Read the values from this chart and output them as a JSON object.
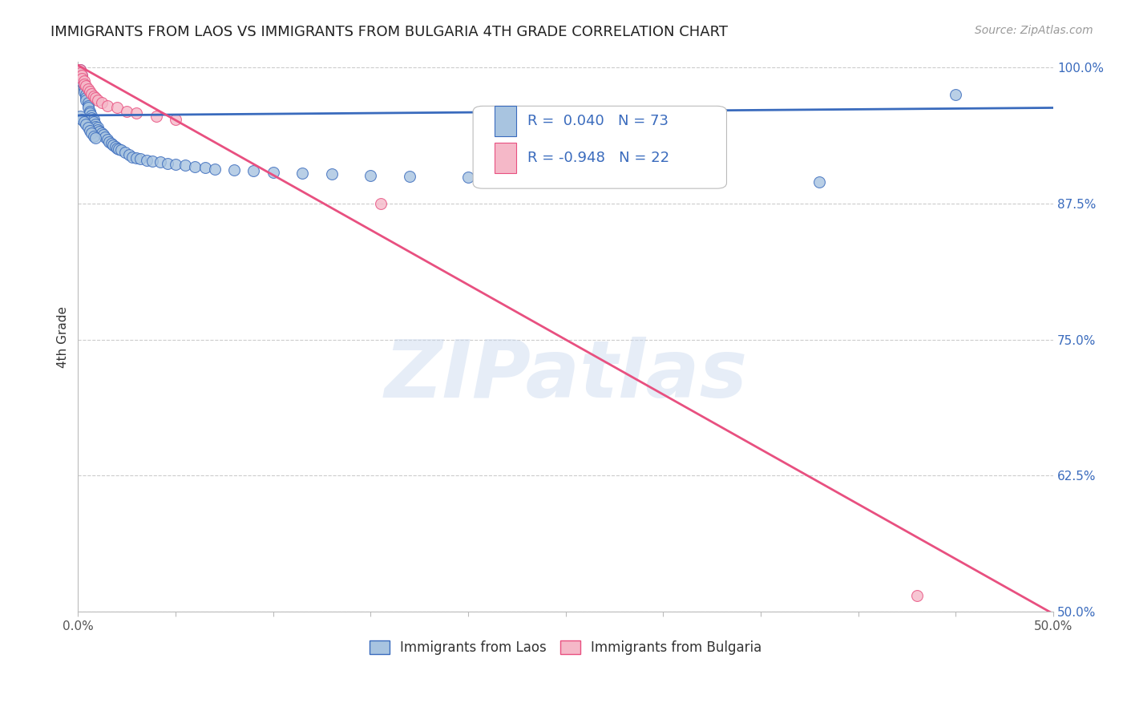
{
  "title": "IMMIGRANTS FROM LAOS VS IMMIGRANTS FROM BULGARIA 4TH GRADE CORRELATION CHART",
  "source": "Source: ZipAtlas.com",
  "ylabel": "4th Grade",
  "xlim": [
    0.0,
    0.5
  ],
  "ylim": [
    0.5,
    1.005
  ],
  "yticks_right": [
    0.5,
    0.625,
    0.75,
    0.875,
    1.0
  ],
  "yticklabels_right": [
    "50.0%",
    "62.5%",
    "75.0%",
    "87.5%",
    "100.0%"
  ],
  "R_laos": 0.04,
  "N_laos": 73,
  "R_bulgaria": -0.948,
  "N_bulgaria": 22,
  "color_laos": "#a8c4e0",
  "color_laos_line": "#3a6bbd",
  "color_bulgaria": "#f5b8c8",
  "color_bulgaria_line": "#e85080",
  "scatter_size": 100,
  "laos_x": [
    0.001,
    0.001,
    0.002,
    0.002,
    0.002,
    0.003,
    0.003,
    0.003,
    0.003,
    0.004,
    0.004,
    0.004,
    0.005,
    0.005,
    0.005,
    0.006,
    0.006,
    0.007,
    0.007,
    0.008,
    0.008,
    0.009,
    0.009,
    0.01,
    0.01,
    0.011,
    0.012,
    0.013,
    0.014,
    0.015,
    0.016,
    0.017,
    0.018,
    0.019,
    0.02,
    0.021,
    0.022,
    0.024,
    0.026,
    0.028,
    0.03,
    0.032,
    0.035,
    0.038,
    0.042,
    0.046,
    0.05,
    0.055,
    0.06,
    0.065,
    0.07,
    0.08,
    0.09,
    0.1,
    0.115,
    0.13,
    0.15,
    0.17,
    0.2,
    0.23,
    0.27,
    0.32,
    0.38,
    0.45,
    0.001,
    0.002,
    0.003,
    0.004,
    0.005,
    0.006,
    0.007,
    0.008,
    0.009
  ],
  "laos_y": [
    0.998,
    0.995,
    0.993,
    0.99,
    0.987,
    0.985,
    0.982,
    0.98,
    0.977,
    0.975,
    0.972,
    0.97,
    0.968,
    0.965,
    0.963,
    0.96,
    0.958,
    0.956,
    0.954,
    0.952,
    0.95,
    0.948,
    0.946,
    0.945,
    0.943,
    0.941,
    0.94,
    0.938,
    0.936,
    0.934,
    0.932,
    0.93,
    0.929,
    0.927,
    0.926,
    0.925,
    0.924,
    0.922,
    0.92,
    0.918,
    0.917,
    0.916,
    0.915,
    0.914,
    0.913,
    0.912,
    0.911,
    0.91,
    0.909,
    0.908,
    0.907,
    0.906,
    0.905,
    0.904,
    0.903,
    0.902,
    0.901,
    0.9,
    0.899,
    0.898,
    0.897,
    0.896,
    0.895,
    0.975,
    0.955,
    0.952,
    0.95,
    0.948,
    0.945,
    0.942,
    0.94,
    0.937,
    0.935
  ],
  "bulgaria_x": [
    0.001,
    0.001,
    0.002,
    0.002,
    0.003,
    0.003,
    0.004,
    0.005,
    0.006,
    0.007,
    0.008,
    0.009,
    0.01,
    0.012,
    0.015,
    0.02,
    0.025,
    0.03,
    0.04,
    0.05,
    0.155,
    0.43
  ],
  "bulgaria_y": [
    0.998,
    0.995,
    0.993,
    0.99,
    0.988,
    0.985,
    0.983,
    0.98,
    0.978,
    0.976,
    0.974,
    0.972,
    0.97,
    0.968,
    0.965,
    0.963,
    0.96,
    0.958,
    0.955,
    0.952,
    0.875,
    0.515
  ],
  "watermark": "ZIPatlas",
  "legend_laos": "Immigrants from Laos",
  "legend_bulgaria": "Immigrants from Bulgaria",
  "blue_line_y_at_0": 0.956,
  "blue_line_y_at_50pct": 0.963,
  "pink_line_y_at_0": 1.002,
  "pink_line_y_at_50pct": 0.498
}
